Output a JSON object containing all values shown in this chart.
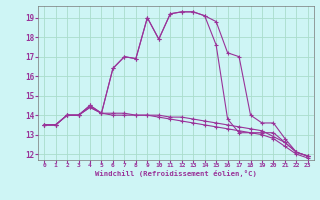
{
  "xlabel": "Windchill (Refroidissement éolien,°C)",
  "bg_color": "#cef5f5",
  "line_color": "#993399",
  "grid_color": "#aaddcc",
  "xlim": [
    -0.5,
    23.5
  ],
  "ylim": [
    11.7,
    19.6
  ],
  "yticks": [
    12,
    13,
    14,
    15,
    16,
    17,
    18,
    19
  ],
  "xticks": [
    0,
    1,
    2,
    3,
    4,
    5,
    6,
    7,
    8,
    9,
    10,
    11,
    12,
    13,
    14,
    15,
    16,
    17,
    18,
    19,
    20,
    21,
    22,
    23
  ],
  "series": [
    [
      13.5,
      13.5,
      14.0,
      14.0,
      14.5,
      14.1,
      16.4,
      17.0,
      16.9,
      19.0,
      17.9,
      19.2,
      19.3,
      19.3,
      19.1,
      18.8,
      17.2,
      17.0,
      14.0,
      13.6,
      13.6,
      12.8,
      12.1,
      11.9
    ],
    [
      13.5,
      13.5,
      14.0,
      14.0,
      14.5,
      14.1,
      16.4,
      17.0,
      16.9,
      19.0,
      17.9,
      19.2,
      19.3,
      19.3,
      19.1,
      17.6,
      13.8,
      13.1,
      13.1,
      13.1,
      13.1,
      12.6,
      12.1,
      11.9
    ],
    [
      13.5,
      13.5,
      14.0,
      14.0,
      14.4,
      14.1,
      14.1,
      14.1,
      14.0,
      14.0,
      14.0,
      13.9,
      13.9,
      13.8,
      13.7,
      13.6,
      13.5,
      13.4,
      13.3,
      13.2,
      12.9,
      12.6,
      12.1,
      11.9
    ],
    [
      13.5,
      13.5,
      14.0,
      14.0,
      14.4,
      14.1,
      14.0,
      14.0,
      14.0,
      14.0,
      13.9,
      13.8,
      13.7,
      13.6,
      13.5,
      13.4,
      13.3,
      13.2,
      13.1,
      13.0,
      12.8,
      12.4,
      12.0,
      11.8
    ]
  ]
}
